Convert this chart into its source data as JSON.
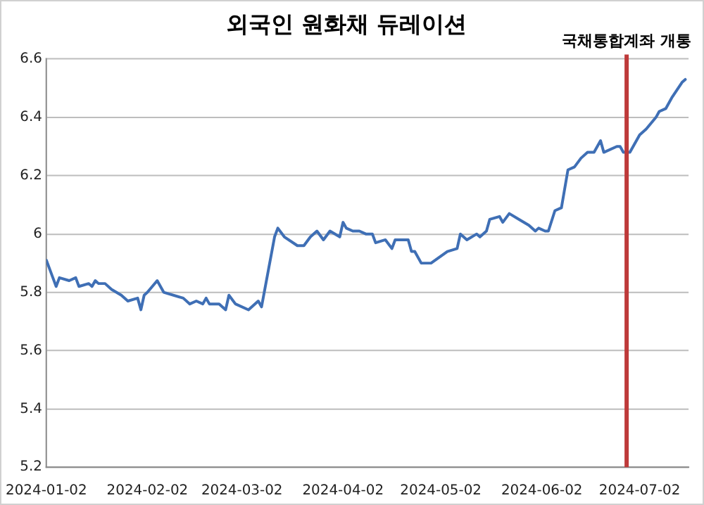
{
  "chart_data": {
    "type": "line",
    "title": "외국인 원화채 듀레이션",
    "x": [
      "2024-01-02",
      "2024-01-04",
      "2024-01-05",
      "2024-01-06",
      "2024-01-09",
      "2024-01-11",
      "2024-01-12",
      "2024-01-15",
      "2024-01-16",
      "2024-01-17",
      "2024-01-18",
      "2024-01-20",
      "2024-01-22",
      "2024-01-25",
      "2024-01-27",
      "2024-01-30",
      "2024-01-31",
      "2024-02-01",
      "2024-02-02",
      "2024-02-05",
      "2024-02-07",
      "2024-02-13",
      "2024-02-15",
      "2024-02-17",
      "2024-02-19",
      "2024-02-20",
      "2024-02-21",
      "2024-02-24",
      "2024-02-26",
      "2024-02-27",
      "2024-02-29",
      "2024-03-04",
      "2024-03-07",
      "2024-03-08",
      "2024-03-10",
      "2024-03-12",
      "2024-03-13",
      "2024-03-15",
      "2024-03-19",
      "2024-03-21",
      "2024-03-23",
      "2024-03-25",
      "2024-03-27",
      "2024-03-29",
      "2024-04-01",
      "2024-04-02",
      "2024-04-03",
      "2024-04-05",
      "2024-04-07",
      "2024-04-09",
      "2024-04-11",
      "2024-04-12",
      "2024-04-15",
      "2024-04-17",
      "2024-04-18",
      "2024-04-22",
      "2024-04-23",
      "2024-04-24",
      "2024-04-26",
      "2024-04-29",
      "2024-05-04",
      "2024-05-07",
      "2024-05-08",
      "2024-05-10",
      "2024-05-13",
      "2024-05-14",
      "2024-05-16",
      "2024-05-17",
      "2024-05-20",
      "2024-05-21",
      "2024-05-23",
      "2024-05-26",
      "2024-05-29",
      "2024-05-31",
      "2024-06-01",
      "2024-06-03",
      "2024-06-04",
      "2024-06-06",
      "2024-06-08",
      "2024-06-10",
      "2024-06-12",
      "2024-06-14",
      "2024-06-16",
      "2024-06-18",
      "2024-06-20",
      "2024-06-21",
      "2024-06-25",
      "2024-06-26",
      "2024-06-27",
      "2024-06-29",
      "2024-06-30",
      "2024-07-02",
      "2024-07-04",
      "2024-07-07",
      "2024-07-08",
      "2024-07-10",
      "2024-07-12",
      "2024-07-15",
      "2024-07-16"
    ],
    "series": [
      {
        "color": "#3f6fb5",
        "values": [
          5.91,
          5.85,
          5.82,
          5.85,
          5.84,
          5.85,
          5.82,
          5.83,
          5.82,
          5.84,
          5.83,
          5.83,
          5.81,
          5.79,
          5.77,
          5.78,
          5.74,
          5.79,
          5.8,
          5.84,
          5.8,
          5.78,
          5.76,
          5.77,
          5.76,
          5.78,
          5.76,
          5.76,
          5.74,
          5.79,
          5.76,
          5.74,
          5.77,
          5.75,
          5.87,
          5.99,
          6.02,
          5.99,
          5.96,
          5.96,
          5.99,
          6.01,
          5.98,
          6.01,
          5.99,
          6.04,
          6.02,
          6.01,
          6.01,
          6.0,
          6.0,
          5.97,
          5.98,
          5.95,
          5.98,
          5.98,
          5.94,
          5.94,
          5.9,
          5.9,
          5.94,
          5.95,
          6.0,
          5.98,
          6.0,
          5.99,
          6.01,
          6.05,
          6.06,
          6.04,
          6.07,
          6.05,
          6.03,
          6.01,
          6.02,
          6.01,
          6.01,
          6.08,
          6.09,
          6.22,
          6.23,
          6.26,
          6.28,
          6.28,
          6.32,
          6.28,
          6.3,
          6.3,
          6.28,
          6.28,
          6.3,
          6.34,
          6.36,
          6.4,
          6.42,
          6.43,
          6.47,
          6.52,
          6.53
        ]
      }
    ],
    "xlim": [
      "2024-01-02",
      "2024-07-17"
    ],
    "xticks": [
      "2024-01-02",
      "2024-02-02",
      "2024-03-02",
      "2024-04-02",
      "2024-05-02",
      "2024-06-02",
      "2024-07-02"
    ],
    "ylim": [
      5.2,
      6.6
    ],
    "yticks": [
      5.2,
      5.4,
      5.6,
      5.8,
      6,
      6.2,
      6.4,
      6.6
    ],
    "grid": "y",
    "legend": false,
    "marker": "none",
    "line_style": "solid",
    "ref_lines": [
      {
        "axis": "x",
        "value": "2024-06-28",
        "label": "국채통합계좌 개통",
        "color": "#be3a3a"
      }
    ]
  }
}
